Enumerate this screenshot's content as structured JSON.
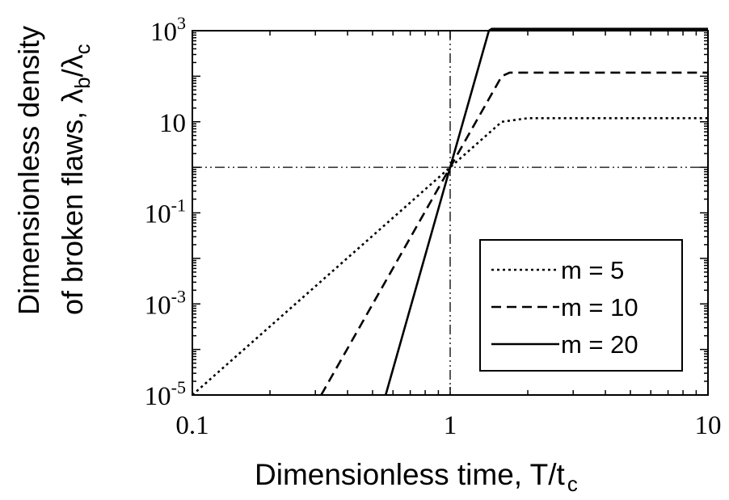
{
  "chart_data": {
    "type": "line",
    "xscale": "log",
    "yscale": "log",
    "xlim": [
      0.1,
      10
    ],
    "ylim": [
      1e-05,
      1000
    ],
    "xlabel": {
      "main": "Dimensionless time, T/t",
      "sub": "c"
    },
    "ylabel": {
      "line1": "Dimensionless density",
      "line2": "of broken flaws,",
      "symbol": "λ",
      "sub1": "b",
      "slash": "/",
      "symbol2": "λ",
      "sub2": "c"
    },
    "x_ticks": [
      {
        "value": 0.1,
        "label": "0.1"
      },
      {
        "value": 1,
        "label": "1"
      },
      {
        "value": 10,
        "label": "10"
      }
    ],
    "y_ticks": [
      {
        "value": 1000,
        "base": "10",
        "exp": "3"
      },
      {
        "value": 10,
        "base": "10",
        "exp": ""
      },
      {
        "value": 0.1,
        "base": "10",
        "exp": "-1"
      },
      {
        "value": 0.001,
        "base": "10",
        "exp": "-3"
      },
      {
        "value": 1e-05,
        "base": "10",
        "exp": "-5"
      }
    ],
    "reference_lines": {
      "x": 1,
      "y": 1
    },
    "grid": false,
    "legend_position": "bottom-right",
    "series": [
      {
        "name": "m = 5",
        "style": "dotted",
        "x": [
          0.1,
          1,
          1.585,
          2.0,
          10
        ],
        "y": [
          1e-05,
          1,
          10,
          12,
          12
        ]
      },
      {
        "name": "m = 10",
        "style": "dashed",
        "x": [
          0.316,
          1,
          1.585,
          1.7,
          10
        ],
        "y": [
          1e-05,
          1,
          100,
          120,
          120
        ]
      },
      {
        "name": "m = 20",
        "style": "solid",
        "x": [
          0.562,
          1,
          1.413,
          1.45,
          10
        ],
        "y": [
          1e-05,
          1,
          1000,
          1100,
          1100
        ]
      }
    ]
  }
}
